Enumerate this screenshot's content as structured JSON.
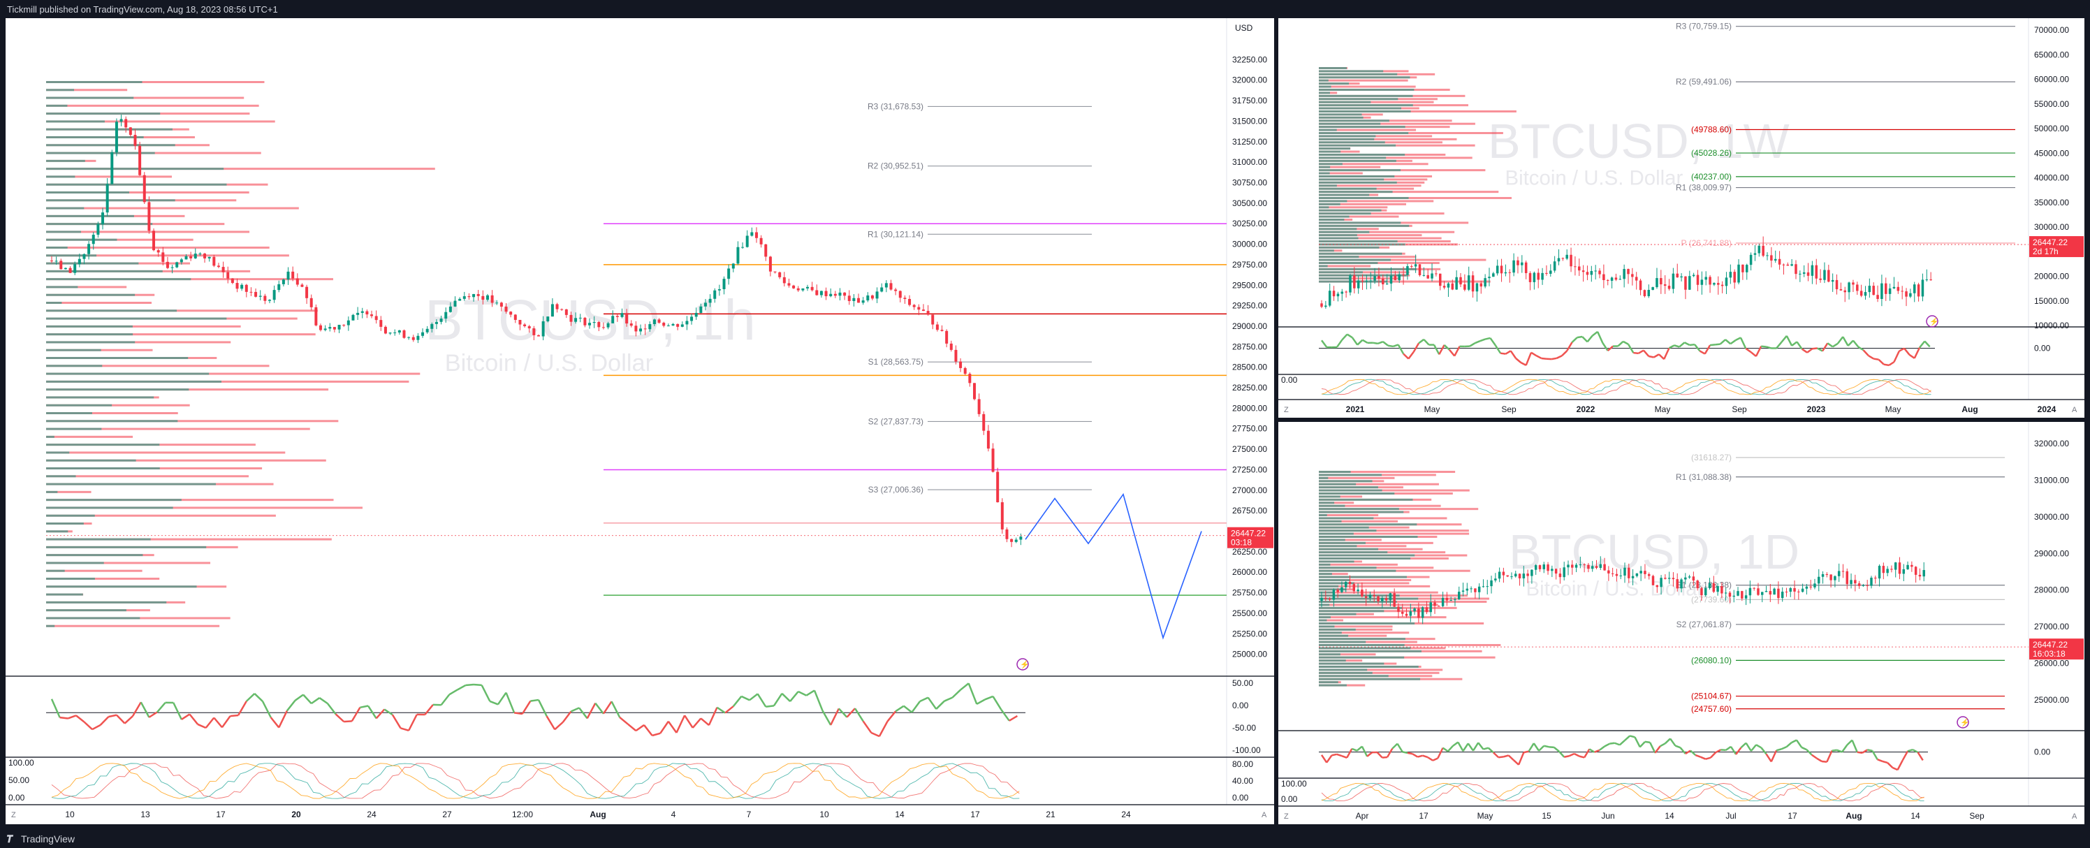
{
  "header": {
    "publisher": "Tickmill published on TradingView.com, Aug 18, 2023 08:56 UTC+1"
  },
  "footer": {
    "brand": "TradingView",
    "logo_icon": "tradingview-logo-icon"
  },
  "colors": {
    "up": "#089981",
    "down": "#f23645",
    "projection": "#2962ff",
    "pivot_text": "#787b86"
  },
  "chart_data": [
    {
      "id": "main",
      "type": "candlestick",
      "symbol": "BTCUSD",
      "timeframe": "1h",
      "watermark": "BTCUSD, 1h",
      "subtitle": "Bitcoin / U.S. Dollar",
      "currency": "USD",
      "ylim": [
        24750,
        32500
      ],
      "y_ticks": [
        "32250.00",
        "32000.00",
        "31750.00",
        "31500.00",
        "31250.00",
        "31000.00",
        "30750.00",
        "30500.00",
        "30250.00",
        "30000.00",
        "29750.00",
        "29500.00",
        "29250.00",
        "29000.00",
        "28750.00",
        "28500.00",
        "28250.00",
        "28000.00",
        "27750.00",
        "27500.00",
        "27250.00",
        "27000.00",
        "26750.00",
        "26500.00",
        "26250.00",
        "26000.00",
        "25750.00",
        "25500.00",
        "25250.00",
        "25000.00"
      ],
      "x_ticks": [
        "10",
        "13",
        "17",
        "20",
        "24",
        "27",
        "12:00",
        "Aug",
        "4",
        "7",
        "10",
        "14",
        "17",
        "21",
        "24"
      ],
      "pivots": [
        {
          "label": "R3 (31,678.53)",
          "value": 31678.53
        },
        {
          "label": "R2 (30,952.51)",
          "value": 30952.51
        },
        {
          "label": "R1 (30,121.14)",
          "value": 30121.14
        },
        {
          "label": "S1 (28,563.75)",
          "value": 28563.75
        },
        {
          "label": "S2 (27,837.73)",
          "value": 27837.73
        },
        {
          "label": "S3 (27,006.36)",
          "value": 27006.36
        }
      ],
      "horizontal_lines": [
        {
          "value": 30250,
          "color": "#e040fb"
        },
        {
          "value": 29750,
          "color": "#ff9800"
        },
        {
          "value": 29150,
          "color": "#d50000"
        },
        {
          "value": 28400,
          "color": "#ff9800"
        },
        {
          "value": 27250,
          "color": "#e040fb"
        },
        {
          "value": 26600,
          "color": "#f7a0a8"
        },
        {
          "value": 25720,
          "color": "#4caf50"
        }
      ],
      "price_label": {
        "value": "26447.22",
        "countdown": "03:18"
      },
      "close_path": [
        29800,
        29650,
        29900,
        30300,
        31600,
        31200,
        30000,
        29700,
        29850,
        29900,
        29700,
        29500,
        29400,
        29300,
        29650,
        29500,
        28950,
        29000,
        29100,
        29200,
        28950,
        28900,
        28850,
        29050,
        29300,
        29400,
        29350,
        29200,
        29050,
        28850,
        29300,
        29100,
        29050,
        29000,
        29150,
        28900,
        29100,
        29000,
        29050,
        29300,
        29450,
        29900,
        30200,
        29700,
        29500,
        29450,
        29400,
        29400,
        29300,
        29350,
        29500,
        29300,
        29200,
        29000,
        28650,
        28300,
        27600,
        26350,
        26450
      ],
      "projection": [
        [
          26400,
          26900,
          26350,
          26950,
          25200,
          26500
        ]
      ],
      "projection_x_days": [
        17.1,
        17.8,
        18.6,
        19.5,
        21.2,
        22.6
      ],
      "oscillator_1": {
        "ticks": [
          "50.00",
          "0.00",
          "-50.00",
          "-100.00"
        ],
        "ylim": [
          -120,
          70
        ]
      },
      "oscillator_2": {
        "ticks": [
          "100.00",
          "50.00",
          "0.00"
        ],
        "right_ticks": [
          "80.00",
          "40.00",
          "0.00"
        ],
        "ylim": [
          0,
          110
        ]
      }
    },
    {
      "id": "weekly",
      "type": "candlestick",
      "symbol": "BTCUSD",
      "timeframe": "1W",
      "watermark": "BTCUSD, 1W",
      "subtitle": "Bitcoin / U.S. Dollar",
      "ylim": [
        10000,
        71000
      ],
      "y_ticks": [
        "70000.00",
        "65000.00",
        "60000.00",
        "55000.00",
        "50000.00",
        "45000.00",
        "40000.00",
        "35000.00",
        "30000.00",
        "25000.00",
        "20000.00",
        "15000.00",
        "10000.00"
      ],
      "x_ticks": [
        "2021",
        "May",
        "Sep",
        "2022",
        "May",
        "Sep",
        "2023",
        "May",
        "Aug",
        "2024"
      ],
      "pivots": [
        {
          "label": "R3 (70,759.15)",
          "value": 70759.15,
          "color": "#787b86"
        },
        {
          "label": "R2 (59,491.06)",
          "value": 59491.06,
          "color": "#787b86"
        },
        {
          "label": "(49788.60)",
          "value": 49788.6,
          "color": "#d50000"
        },
        {
          "label": "(45028.26)",
          "value": 45028.26,
          "color": "#1b8e2a"
        },
        {
          "label": "(40237.00)",
          "value": 40237.0,
          "color": "#1b8e2a"
        },
        {
          "label": "R1 (38,009.97)",
          "value": 38009.97,
          "color": "#787b86"
        },
        {
          "label": "P (26,741.88)",
          "value": 26741.88,
          "color": "#f7a0a8"
        }
      ],
      "price_label": {
        "value": "26447.22",
        "countdown": "2d 17h"
      },
      "oscillator_1": {
        "ticks": [
          "0.00"
        ]
      },
      "oscillator_2": {
        "ticks": [
          "0.00"
        ]
      }
    },
    {
      "id": "daily",
      "type": "candlestick",
      "symbol": "BTCUSD",
      "timeframe": "1D",
      "watermark": "BTCUSD, 1D",
      "subtitle": "Bitcoin / U.S. Dollar",
      "ylim": [
        24200,
        32400
      ],
      "y_ticks": [
        "32000.00",
        "31000.00",
        "30000.00",
        "29000.00",
        "28000.00",
        "27000.00",
        "26000.00",
        "25000.00"
      ],
      "x_ticks": [
        "Apr",
        "17",
        "May",
        "15",
        "Jun",
        "14",
        "Jul",
        "17",
        "Aug",
        "14",
        "Sep"
      ],
      "pivots": [
        {
          "label": "(31618.27)",
          "value": 31618.27,
          "color": "#c4c4c4"
        },
        {
          "label": "R1 (31,088.38)",
          "value": 31088.38,
          "color": "#787b86"
        },
        {
          "label": "S1 (28,133.38)",
          "value": 28133.38,
          "color": "#787b86"
        },
        {
          "label": "(27739.60)",
          "value": 27739.6,
          "color": "#c4c4c4"
        },
        {
          "label": "S2 (27,061.87)",
          "value": 27061.87,
          "color": "#787b86"
        },
        {
          "label": "(26080.10)",
          "value": 26080.1,
          "color": "#1b8e2a"
        },
        {
          "label": "(25104.67)",
          "value": 25104.67,
          "color": "#d50000"
        },
        {
          "label": "(24757.60)",
          "value": 24757.6,
          "color": "#d50000"
        }
      ],
      "price_label": {
        "value": "26447.22",
        "countdown": "16:03:18"
      },
      "oscillator_1": {
        "ticks": [
          "0.00"
        ]
      },
      "oscillator_2": {
        "ticks": [
          "100.00",
          "0.00"
        ]
      }
    }
  ]
}
